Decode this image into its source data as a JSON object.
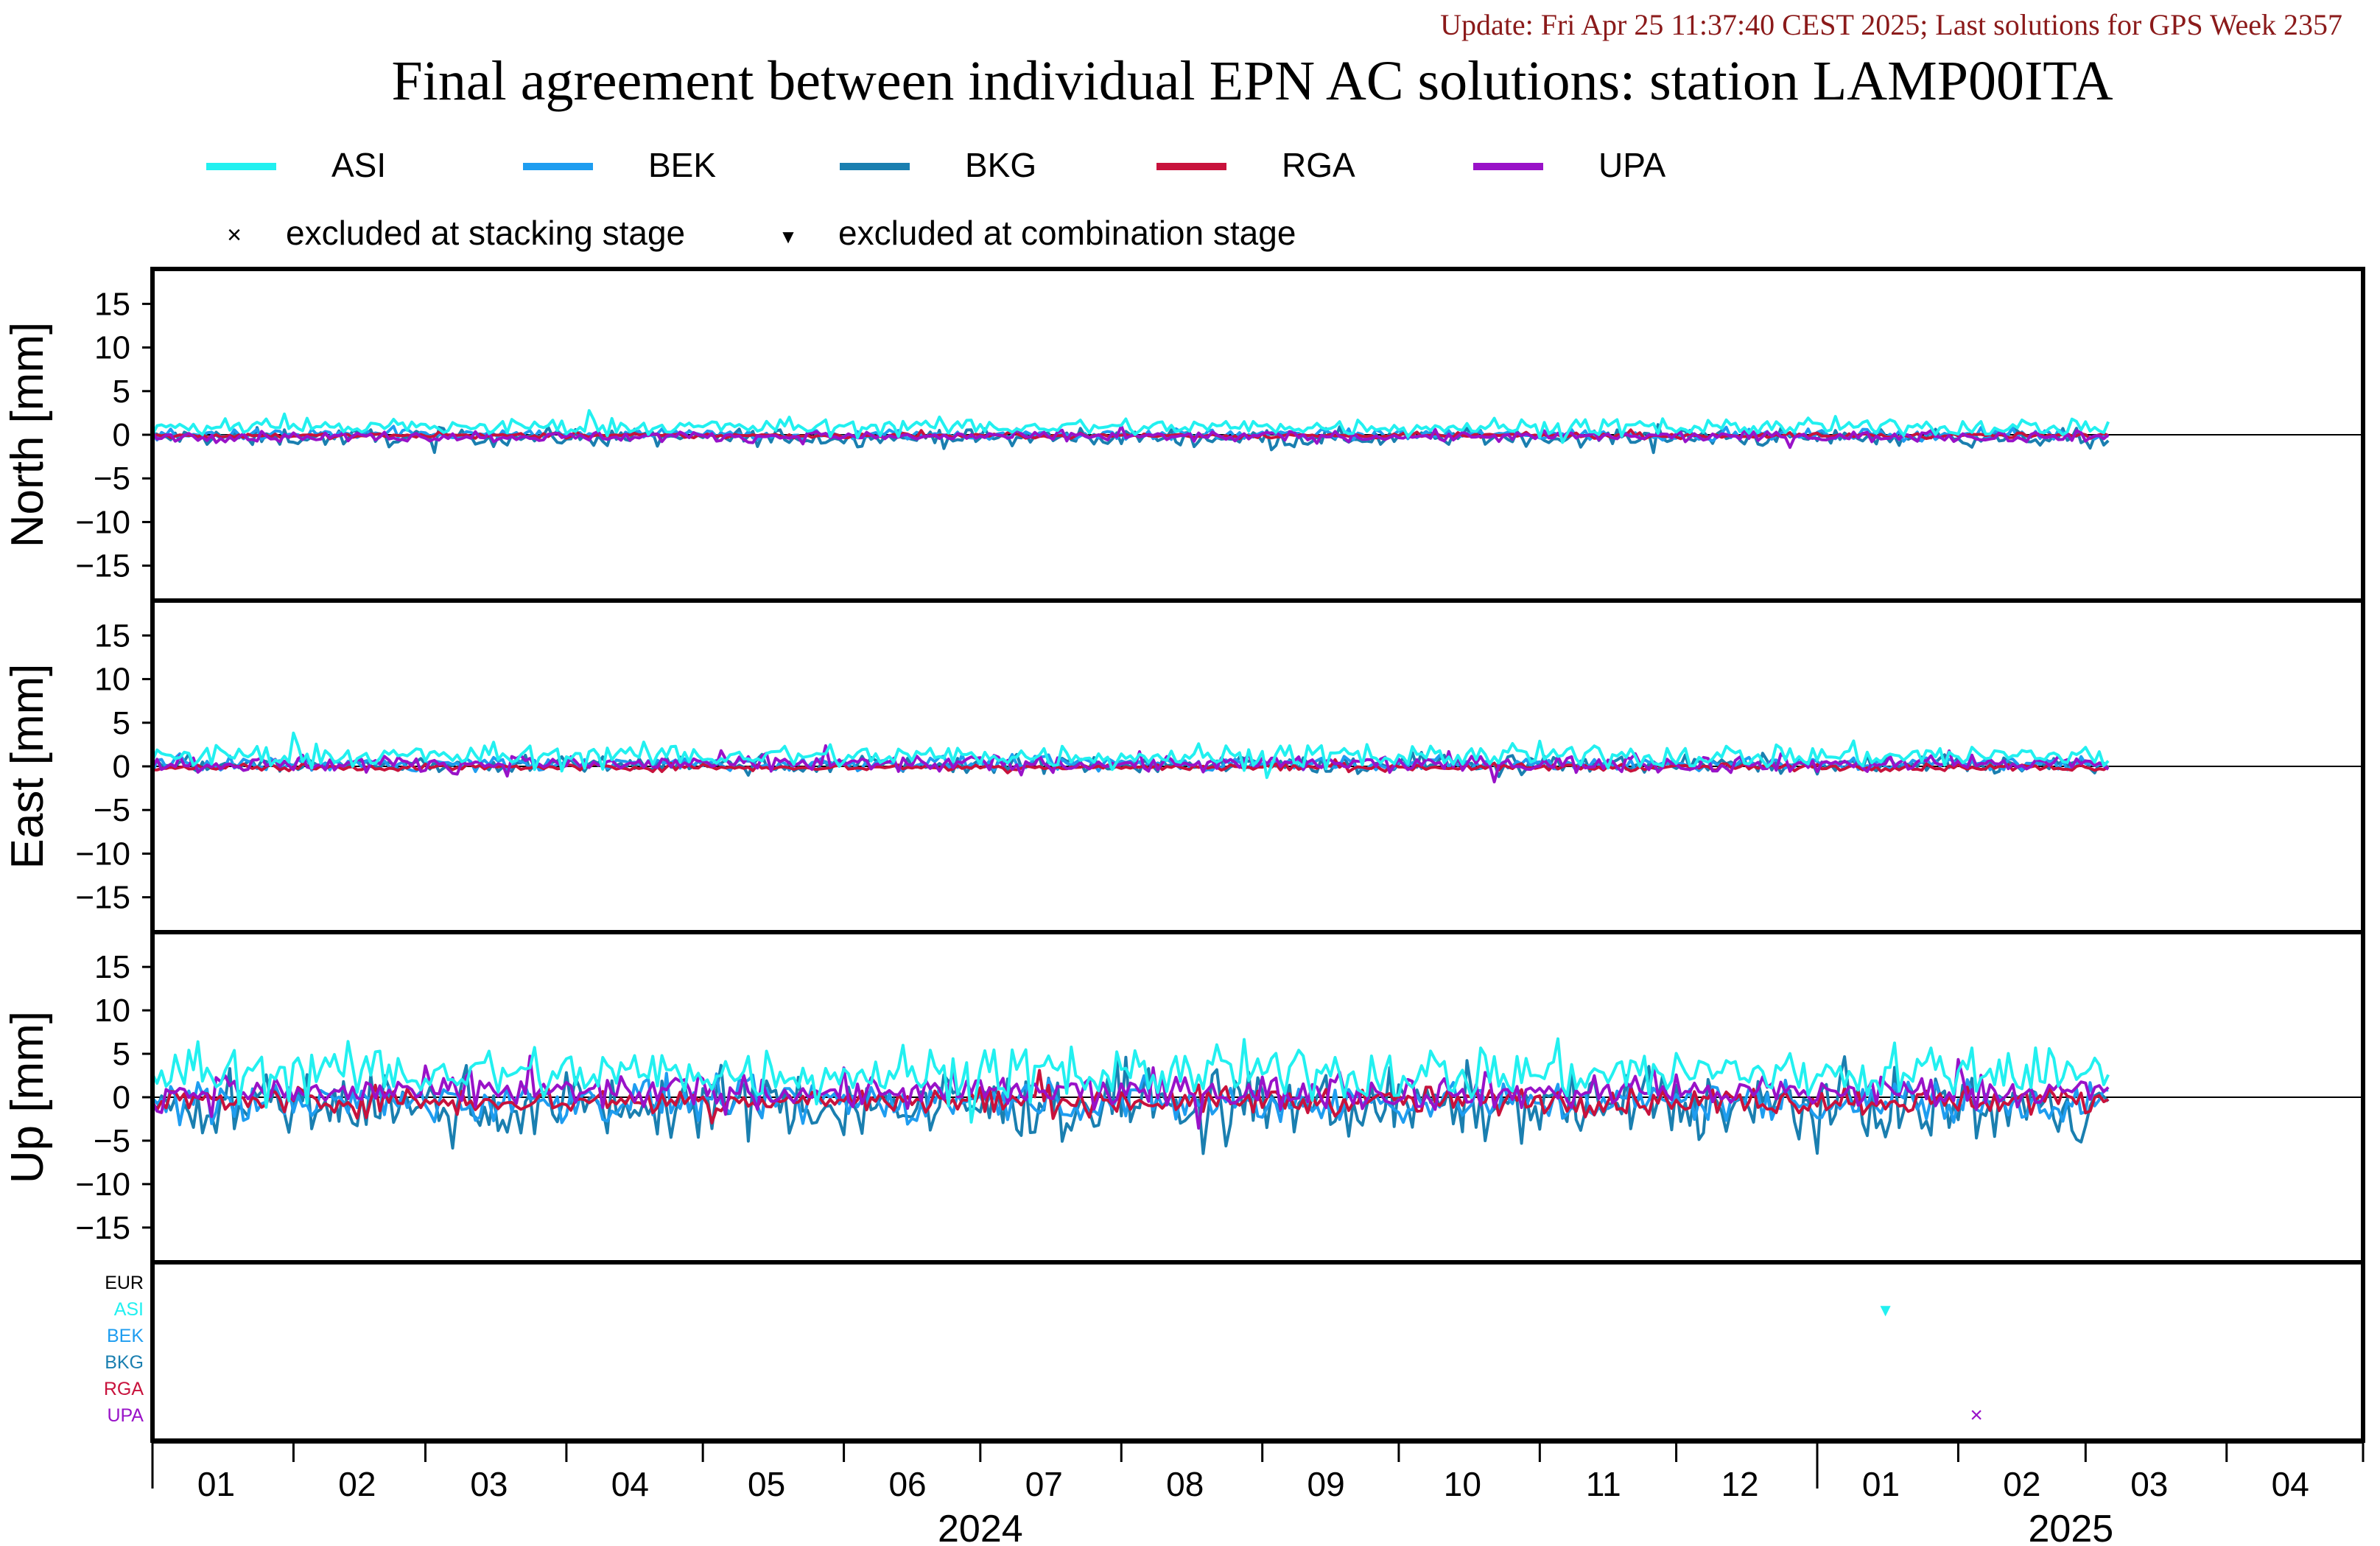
{
  "header": {
    "update_text": "Update: Fri Apr 25 11:37:40 CEST 2025; Last solutions for GPS Week 2357",
    "title": "Final agreement between individual EPN AC solutions: station LAMP00ITA"
  },
  "colors": {
    "update": "#8b1a1a",
    "ASI": "#22f0f0",
    "BEK": "#1e9df0",
    "BKG": "#1a7fb0",
    "RGA": "#c8123c",
    "UPA": "#9912c8",
    "EUR": "#000000"
  },
  "legend": {
    "series": [
      "ASI",
      "BEK",
      "BKG",
      "RGA",
      "UPA"
    ],
    "markers": [
      {
        "symbol": "×",
        "label": "excluded at stacking stage"
      },
      {
        "symbol": "▼",
        "label": "excluded at combination stage"
      }
    ]
  },
  "chart_data": {
    "type": "line",
    "x_axis": {
      "month_ticks": [
        "01",
        "02",
        "03",
        "04",
        "05",
        "06",
        "07",
        "08",
        "09",
        "10",
        "11",
        "12",
        "01",
        "02",
        "03",
        "04"
      ],
      "year_labels": [
        "2024",
        "2025"
      ],
      "range": [
        "2024-01-01",
        "2025-04-30"
      ]
    },
    "panels": [
      {
        "name": "North",
        "ylabel": "North [mm]",
        "ylim": [
          -19,
          19
        ],
        "yticks": [
          15,
          10,
          5,
          0,
          -5,
          -10,
          -15
        ],
        "levels": {
          "ASI": 0.9,
          "BEK": 0.0,
          "BKG": -0.3,
          "RGA": -0.1,
          "UPA": -0.2
        },
        "noise": {
          "ASI": 0.5,
          "BEK": 0.3,
          "BKG": 0.5,
          "RGA": 0.15,
          "UPA": 0.3
        }
      },
      {
        "name": "East",
        "ylabel": "East [mm]",
        "ylim": [
          -19,
          19
        ],
        "yticks": [
          15,
          10,
          5,
          0,
          -5,
          -10,
          -15
        ],
        "levels": {
          "ASI": 1.2,
          "BEK": 0.3,
          "BKG": 0.2,
          "RGA": -0.1,
          "UPA": 0.3
        },
        "noise": {
          "ASI": 0.7,
          "BEK": 0.4,
          "BKG": 0.5,
          "RGA": 0.2,
          "UPA": 0.5
        }
      },
      {
        "name": "Up",
        "ylabel": "Up [mm]",
        "ylim": [
          -19,
          19
        ],
        "yticks": [
          15,
          10,
          5,
          0,
          -5,
          -10,
          -15
        ],
        "levels": {
          "ASI": 2.8,
          "BEK": -0.5,
          "BKG": -1.0,
          "RGA": -0.4,
          "UPA": 0.6
        },
        "noise": {
          "ASI": 1.6,
          "BEK": 1.2,
          "BKG": 2.0,
          "RGA": 0.8,
          "UPA": 1.0
        }
      }
    ],
    "series_names": [
      "ASI",
      "BEK",
      "BKG",
      "RGA",
      "UPA"
    ],
    "series_end_date": "2025-03-06",
    "exclusion_rows": [
      "EUR",
      "ASI",
      "BEK",
      "BKG",
      "RGA",
      "UPA"
    ],
    "exclusions": [
      {
        "ac": "ASI",
        "date": "2025-01-16",
        "stage": "combination",
        "symbol": "▼"
      },
      {
        "ac": "UPA",
        "date": "2025-02-05",
        "stage": "stacking",
        "symbol": "×"
      }
    ]
  }
}
